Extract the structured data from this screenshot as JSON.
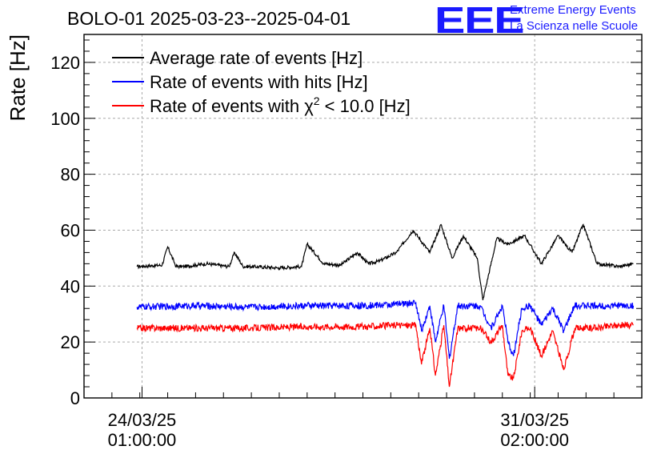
{
  "header": {
    "title": "BOLO-01 2025-03-23--2025-04-01",
    "logo_text": "EEE",
    "logo_line1": "Extreme Energy Events",
    "logo_line2": "La Scienza nelle Scuole"
  },
  "chart_data": {
    "type": "line",
    "title": "BOLO-01 2025-03-23--2025-04-01",
    "ylabel": "Rate [Hz]",
    "xlabel": "",
    "ylim": [
      0,
      130
    ],
    "yticks": [
      0,
      20,
      40,
      60,
      80,
      100,
      120
    ],
    "xlim": [
      0,
      10
    ],
    "x_unit": "days since 2025-03-23 00:00",
    "xticks": [
      {
        "x": 1.04,
        "label_date": "24/03/25",
        "label_time": "01:00:00"
      },
      {
        "x": 8.08,
        "label_date": "31/03/25",
        "label_time": "02:00:00"
      }
    ],
    "grid": true,
    "legend_position": "top-left",
    "series": [
      {
        "name": "Average rate of events [Hz]",
        "color": "#000000",
        "legend_sup": "",
        "x": [
          0.95,
          1.4,
          1.5,
          1.65,
          1.8,
          2.2,
          2.6,
          2.7,
          2.85,
          3.0,
          3.5,
          3.9,
          4.0,
          4.3,
          4.6,
          4.9,
          5.1,
          5.3,
          5.6,
          5.9,
          6.2,
          6.4,
          6.6,
          6.8,
          7.05,
          7.15,
          7.4,
          7.6,
          7.9,
          8.2,
          8.5,
          8.75,
          8.95,
          9.2,
          9.6,
          9.85
        ],
        "values": [
          47,
          47.5,
          54,
          47,
          47,
          48,
          47,
          52,
          47,
          47,
          46.5,
          47,
          55,
          48,
          47.5,
          52,
          48,
          49,
          52,
          60,
          52,
          62,
          50,
          58,
          50,
          35,
          57,
          55,
          58,
          48,
          58,
          52,
          62,
          48,
          47,
          48
        ]
      },
      {
        "name": "Rate of events with hits [Hz]",
        "color": "#0000ff",
        "legend_sup": "",
        "x": [
          0.95,
          2.0,
          3.0,
          4.0,
          5.0,
          5.6,
          5.95,
          6.05,
          6.2,
          6.3,
          6.45,
          6.55,
          6.7,
          6.9,
          7.1,
          7.3,
          7.5,
          7.6,
          7.7,
          7.85,
          8.0,
          8.2,
          8.4,
          8.6,
          8.8,
          9.2,
          9.5,
          9.85
        ],
        "values": [
          32.5,
          33,
          32.5,
          33,
          33,
          33.5,
          34,
          24,
          33,
          20,
          33,
          14,
          33,
          33,
          33,
          25,
          33,
          20,
          15,
          32,
          33,
          26,
          32,
          24,
          33,
          33,
          33,
          33
        ]
      },
      {
        "name": "Rate of events with χ2 < 10.0 [Hz]",
        "color": "#ff0000",
        "legend_sup": "2",
        "x": [
          0.95,
          2.0,
          3.0,
          4.0,
          5.0,
          5.6,
          5.95,
          6.05,
          6.2,
          6.3,
          6.45,
          6.55,
          6.7,
          6.9,
          7.1,
          7.3,
          7.5,
          7.6,
          7.7,
          7.85,
          8.0,
          8.2,
          8.4,
          8.6,
          8.8,
          9.2,
          9.5,
          9.85
        ],
        "values": [
          25,
          25,
          25,
          25.5,
          25.5,
          26,
          26,
          12,
          25,
          8,
          26,
          4,
          25,
          25,
          25,
          20,
          26,
          8,
          7,
          24,
          25,
          15,
          24,
          10,
          25,
          25,
          26,
          26
        ]
      }
    ]
  }
}
